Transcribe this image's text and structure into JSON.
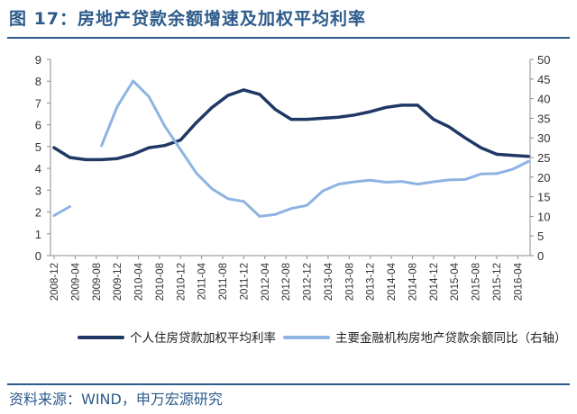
{
  "figure": {
    "title": "图 17：房地产贷款余额增速及加权平均利率",
    "source": "资料来源：WIND，申万宏源研究"
  },
  "chart_data": {
    "type": "line",
    "x_categories": [
      "2008-12",
      "2009-04",
      "2009-08",
      "2009-12",
      "2010-04",
      "2010-08",
      "2010-12",
      "2011-04",
      "2011-08",
      "2011-12",
      "2012-04",
      "2012-08",
      "2012-12",
      "2013-04",
      "2013-08",
      "2013-12",
      "2014-04",
      "2014-08",
      "2014-12",
      "2015-04",
      "2015-08",
      "2015-12",
      "2016-04"
    ],
    "left_axis": {
      "min": 0,
      "max": 9,
      "ticks": [
        0,
        1,
        2,
        3,
        4,
        5,
        6,
        7,
        8,
        9
      ]
    },
    "right_axis": {
      "min": 0,
      "max": 50,
      "ticks": [
        0,
        5,
        10,
        15,
        20,
        25,
        30,
        35,
        40,
        45,
        50
      ]
    },
    "grid": false,
    "legend_position": "bottom",
    "series": [
      {
        "name": "个人住房贷款加权平均利率",
        "axis": "left",
        "color": "#1f3864",
        "points": [
          {
            "x": "2008-12",
            "y": 4.95
          },
          {
            "x": "2009-03",
            "y": 4.5
          },
          {
            "x": "2009-06",
            "y": 4.4
          },
          {
            "x": "2009-09",
            "y": 4.4
          },
          {
            "x": "2009-12",
            "y": 4.45
          },
          {
            "x": "2010-03",
            "y": 4.65
          },
          {
            "x": "2010-06",
            "y": 4.95
          },
          {
            "x": "2010-09",
            "y": 5.05
          },
          {
            "x": "2010-12",
            "y": 5.3
          },
          {
            "x": "2011-03",
            "y": 6.1
          },
          {
            "x": "2011-06",
            "y": 6.8
          },
          {
            "x": "2011-09",
            "y": 7.35
          },
          {
            "x": "2011-12",
            "y": 7.6
          },
          {
            "x": "2012-03",
            "y": 7.4
          },
          {
            "x": "2012-06",
            "y": 6.7
          },
          {
            "x": "2012-09",
            "y": 6.25
          },
          {
            "x": "2012-12",
            "y": 6.25
          },
          {
            "x": "2013-03",
            "y": 6.3
          },
          {
            "x": "2013-06",
            "y": 6.35
          },
          {
            "x": "2013-09",
            "y": 6.45
          },
          {
            "x": "2013-12",
            "y": 6.6
          },
          {
            "x": "2014-03",
            "y": 6.8
          },
          {
            "x": "2014-06",
            "y": 6.9
          },
          {
            "x": "2014-09",
            "y": 6.9
          },
          {
            "x": "2014-12",
            "y": 6.25
          },
          {
            "x": "2015-03",
            "y": 5.9
          },
          {
            "x": "2015-06",
            "y": 5.4
          },
          {
            "x": "2015-09",
            "y": 4.95
          },
          {
            "x": "2015-12",
            "y": 4.65
          },
          {
            "x": "2016-03",
            "y": 4.6
          },
          {
            "x": "2016-06",
            "y": 4.55
          }
        ]
      },
      {
        "name": "主要金融机构房地产贷款余额同比（右轴）",
        "axis": "right",
        "color": "#8db4e2",
        "segments": [
          [
            {
              "x": "2008-12",
              "y": 10.2
            },
            {
              "x": "2009-03",
              "y": 12.5
            }
          ],
          [
            {
              "x": "2009-09",
              "y": 28.0
            },
            {
              "x": "2009-12",
              "y": 38.0
            },
            {
              "x": "2010-03",
              "y": 44.5
            },
            {
              "x": "2010-06",
              "y": 40.5
            },
            {
              "x": "2010-09",
              "y": 33.0
            },
            {
              "x": "2010-12",
              "y": 27.0
            },
            {
              "x": "2011-03",
              "y": 21.0
            },
            {
              "x": "2011-06",
              "y": 17.0
            },
            {
              "x": "2011-09",
              "y": 14.5
            },
            {
              "x": "2011-12",
              "y": 13.8
            },
            {
              "x": "2012-03",
              "y": 10.0
            },
            {
              "x": "2012-06",
              "y": 10.5
            },
            {
              "x": "2012-09",
              "y": 12.0
            },
            {
              "x": "2012-12",
              "y": 12.8
            },
            {
              "x": "2013-03",
              "y": 16.5
            },
            {
              "x": "2013-06",
              "y": 18.2
            },
            {
              "x": "2013-09",
              "y": 18.8
            },
            {
              "x": "2013-12",
              "y": 19.2
            },
            {
              "x": "2014-03",
              "y": 18.7
            },
            {
              "x": "2014-06",
              "y": 18.9
            },
            {
              "x": "2014-09",
              "y": 18.2
            },
            {
              "x": "2014-12",
              "y": 18.8
            },
            {
              "x": "2015-03",
              "y": 19.3
            },
            {
              "x": "2015-06",
              "y": 19.4
            },
            {
              "x": "2015-09",
              "y": 20.8
            },
            {
              "x": "2015-12",
              "y": 20.9
            },
            {
              "x": "2016-03",
              "y": 22.0
            },
            {
              "x": "2016-06",
              "y": 24.0
            }
          ]
        ]
      }
    ]
  }
}
